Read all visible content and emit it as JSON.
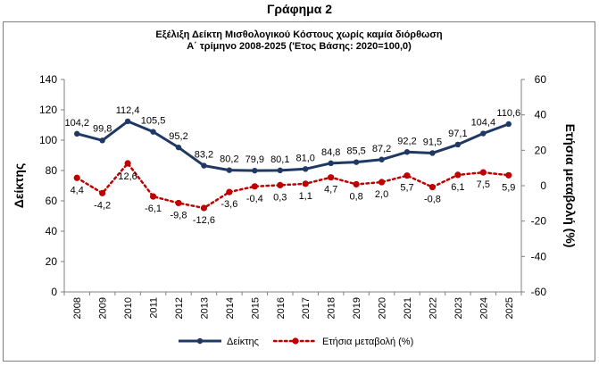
{
  "heading": "Γράφημα 2",
  "chart_data": {
    "type": "line",
    "title": "Εξέλιξη Δείκτη Μισθολογικού  Κόστους χωρίς καμία διόρθωση",
    "subtitle": "Α΄ τρίμηνο 2008-2025 ('Ετος Βάσης: 2020=100,0)",
    "ylabel": "Δείκτης",
    "y2label": "Ετήσια μεταβολή (%)",
    "ylim": [
      0,
      140
    ],
    "y2lim": [
      -60,
      60
    ],
    "yticks": [
      "0",
      "20",
      "40",
      "60",
      "80",
      "100",
      "120",
      "140"
    ],
    "y2ticks": [
      "-60",
      "-40",
      "-20",
      "0",
      "20",
      "40",
      "60"
    ],
    "categories": [
      "2008",
      "2009",
      "2010",
      "2011",
      "2012",
      "2013",
      "2014",
      "2015",
      "2016",
      "2017",
      "2018",
      "2019",
      "2020",
      "2021",
      "2022",
      "2023",
      "2024",
      "2025"
    ],
    "grid": false,
    "legend_position": "bottom",
    "series": [
      {
        "name": "Δείκτης",
        "axis": "left",
        "color": "#1f3864",
        "style": "solid",
        "values": [
          104.2,
          99.8,
          112.4,
          105.5,
          95.2,
          83.2,
          80.2,
          79.9,
          80.1,
          81.0,
          84.8,
          85.5,
          87.2,
          92.2,
          91.5,
          97.1,
          104.4,
          110.6
        ],
        "labels": [
          "104,2",
          "99,8",
          "112,4",
          "105,5",
          "95,2",
          "83,2",
          "80,2",
          "79,9",
          "80,1",
          "81,0",
          "84,8",
          "85,5",
          "87,2",
          "92,2",
          "91,5",
          "97,1",
          "104,4",
          "110,6"
        ]
      },
      {
        "name": "Ετήσια μεταβολή (%)",
        "axis": "right",
        "color": "#c00000",
        "style": "dotted",
        "values": [
          4.4,
          -4.2,
          12.6,
          -6.1,
          -9.8,
          -12.6,
          -3.6,
          -0.4,
          0.3,
          1.1,
          4.7,
          0.8,
          2.0,
          5.7,
          -0.8,
          6.1,
          7.5,
          5.9
        ],
        "labels": [
          "4,4",
          "-4,2",
          "12,6",
          "-6,1",
          "-9,8",
          "-12,6",
          "-3,6",
          "-0,4",
          "0,3",
          "1,1",
          "4,7",
          "0,8",
          "2,0",
          "5,7",
          "-0,8",
          "6,1",
          "7,5",
          "5,9"
        ]
      }
    ]
  }
}
